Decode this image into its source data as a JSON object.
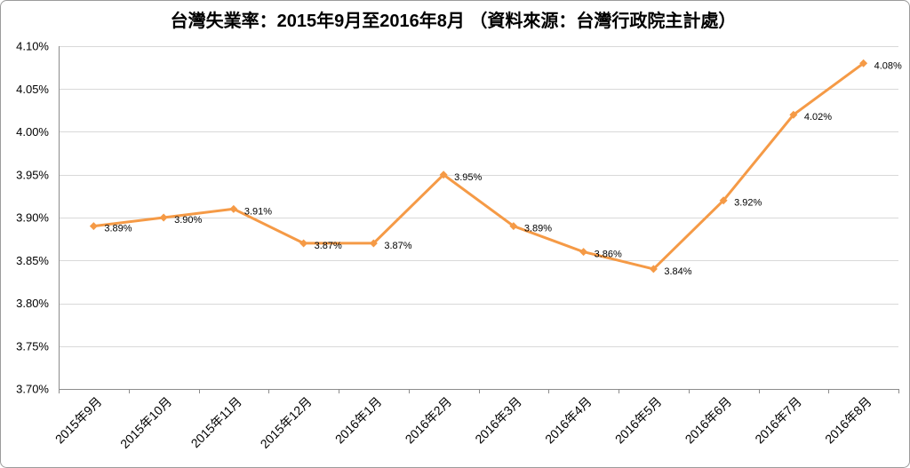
{
  "chart_data": {
    "type": "line",
    "title": "台灣失業率：2015年9月至2016年8月 （資料來源：台灣行政院主計處）",
    "categories": [
      "2015年9月",
      "2015年10月",
      "2015年11月",
      "2015年12月",
      "2016年1月",
      "2016年2月",
      "2016年3月",
      "2016年4月",
      "2016年5月",
      "2016年6月",
      "2016年7月",
      "2016年8月"
    ],
    "series": [
      {
        "values": [
          3.89,
          3.9,
          3.91,
          3.87,
          3.87,
          3.95,
          3.89,
          3.86,
          3.84,
          3.92,
          4.02,
          4.08
        ],
        "data_labels": [
          "3.89%",
          "3.90%",
          "3.91%",
          "3.87%",
          "3.87%",
          "3.95%",
          "3.89%",
          "3.86%",
          "3.84%",
          "3.92%",
          "4.02%",
          "4.08%"
        ],
        "color": "#F59A46",
        "marker": "diamond"
      }
    ],
    "ylim": [
      3.7,
      4.1
    ],
    "yticks": [
      {
        "value": 4.1,
        "label": "4.10%"
      },
      {
        "value": 4.05,
        "label": "4.05%"
      },
      {
        "value": 4.0,
        "label": "4.00%"
      },
      {
        "value": 3.95,
        "label": "3.95%"
      },
      {
        "value": 3.9,
        "label": "3.90%"
      },
      {
        "value": 3.85,
        "label": "3.85%"
      },
      {
        "value": 3.8,
        "label": "3.80%"
      },
      {
        "value": 3.75,
        "label": "3.75%"
      },
      {
        "value": 3.7,
        "label": "3.70%"
      }
    ],
    "grid": true,
    "legend": "none"
  },
  "colors": {
    "line": "#F59A46",
    "gridline": "#D9D9D9",
    "axis": "#8C8C8C",
    "border": "#9B9B9B",
    "background": "#FFFFFF"
  }
}
